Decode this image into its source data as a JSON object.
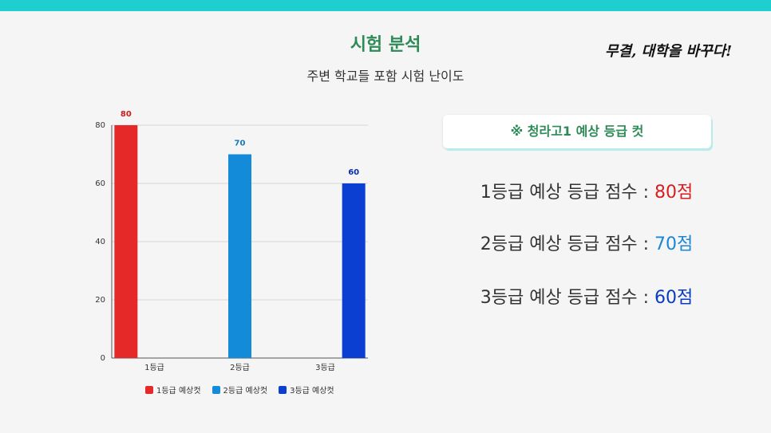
{
  "header": {
    "title": "시험 분석",
    "subtitle": "주변 학교들 포함 시험 난이도",
    "brand": "무결, 대학을 바꾸다!"
  },
  "panel": {
    "cut_title": "※ 청라고1 예상 등급 컷",
    "scores": [
      {
        "label": "1등급 예상 등급 점수 : ",
        "value": "80점",
        "color": "#d61f1f"
      },
      {
        "label": "2등급 예상 등급 점수 : ",
        "value": "70점",
        "color": "#1a87d6"
      },
      {
        "label": "3등급 예상 등급 점수 : ",
        "value": "60점",
        "color": "#0a3cbf"
      }
    ]
  },
  "chart_data": {
    "type": "bar",
    "categories": [
      "1등급",
      "2등급",
      "3등급"
    ],
    "series": [
      {
        "name": "1등급 예상컷",
        "values": [
          80,
          null,
          null
        ],
        "color": "#e52828"
      },
      {
        "name": "2등급 예상컷",
        "values": [
          null,
          70,
          null
        ],
        "color": "#138bd8"
      },
      {
        "name": "3등급 예상컷",
        "values": [
          null,
          null,
          60
        ],
        "color": "#0a3fd1"
      }
    ],
    "data_labels": [
      "80",
      "70",
      "60"
    ],
    "label_colors": [
      "#c81e1e",
      "#1179bd",
      "#0a2fa8"
    ],
    "y_ticks": [
      0,
      20,
      40,
      60,
      80
    ],
    "ylim": [
      0,
      80
    ],
    "grid": true,
    "legend_position": "bottom"
  }
}
